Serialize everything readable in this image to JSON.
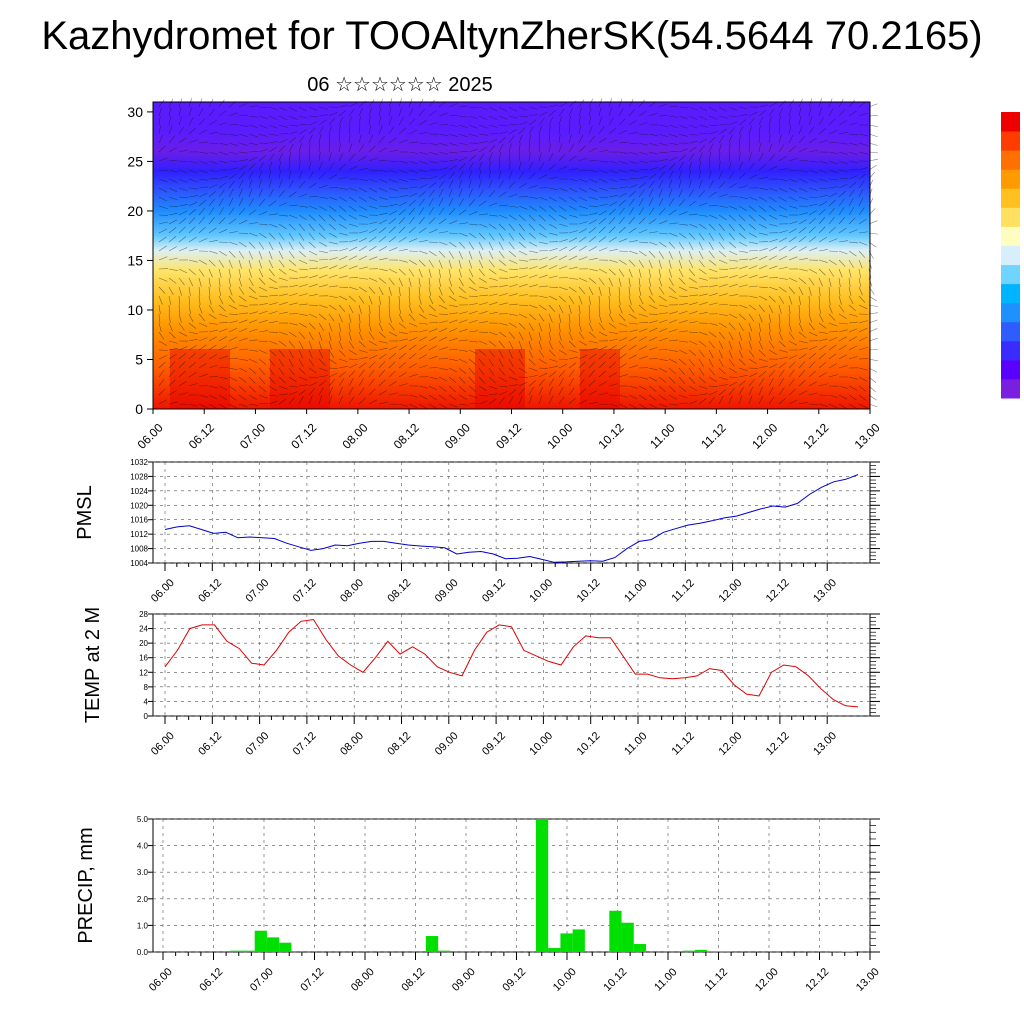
{
  "title": "Kazhydromet for TOOAltynZherSK(54.5644 70.2165)",
  "subtitle": "06 ☆☆☆☆☆☆ 2025",
  "colorbar": {
    "colors": [
      "#7a1fe0",
      "#5a00ff",
      "#3a2bff",
      "#2f5cff",
      "#1e90ff",
      "#00b5ff",
      "#6fd4ff",
      "#d7eefc",
      "#fffdc0",
      "#ffe060",
      "#ffc020",
      "#ff9a00",
      "#ff7000",
      "#ff3c00",
      "#ee0000"
    ]
  },
  "chart_data": [
    {
      "type": "heatmap",
      "name": "cross-section",
      "x_ticks": [
        "06.00",
        "06.12",
        "07.00",
        "07.12",
        "08.00",
        "08.12",
        "09.00",
        "09.12",
        "10.00",
        "10.12",
        "11.00",
        "11.12",
        "12.00",
        "12.12",
        "13.00"
      ],
      "y_ticks": [
        "0",
        "5",
        "10",
        "15",
        "20",
        "25",
        "30"
      ],
      "ylim": [
        0,
        31
      ],
      "bands": [
        {
          "y": 0,
          "color": "#ee1500"
        },
        {
          "y": 4,
          "color": "#ff5a00"
        },
        {
          "y": 8,
          "color": "#ff9200"
        },
        {
          "y": 11,
          "color": "#ffbe1e"
        },
        {
          "y": 14,
          "color": "#ffe46a"
        },
        {
          "y": 16,
          "color": "#dcf0f4"
        },
        {
          "y": 17.5,
          "color": "#62c8ff"
        },
        {
          "y": 20,
          "color": "#1f8cff"
        },
        {
          "y": 22,
          "color": "#2c55ff"
        },
        {
          "y": 24,
          "color": "#3020ff"
        },
        {
          "y": 26,
          "color": "#6a1ee8"
        },
        {
          "y": 28,
          "color": "#5a1cff"
        },
        {
          "y": 31,
          "color": "#5a1cff"
        }
      ]
    },
    {
      "type": "line",
      "ylabel": "PMSL",
      "x_ticks": [
        "06.00",
        "06.12",
        "07.00",
        "07.12",
        "08.00",
        "08.12",
        "09.00",
        "09.12",
        "10.00",
        "10.12",
        "11.00",
        "11.12",
        "12.00",
        "12.12",
        "13.00"
      ],
      "y_ticks": [
        "1004",
        "1008",
        "1012",
        "1016",
        "1020",
        "1024",
        "1028",
        "1032"
      ],
      "ylim": [
        1004,
        1032
      ],
      "color": "#0000cc",
      "values": [
        1013.3,
        1014,
        1014.3,
        1013.3,
        1012.2,
        1012.5,
        1011,
        1011.2,
        1011,
        1010.8,
        1009.5,
        1008.5,
        1007.5,
        1008,
        1009,
        1008.8,
        1009.5,
        1010,
        1010,
        1009.5,
        1009,
        1008.7,
        1008.5,
        1008.2,
        1006.5,
        1007,
        1007.2,
        1006.5,
        1005.2,
        1005.3,
        1005.8,
        1005,
        1004.2,
        1004.3,
        1004.5,
        1004.6,
        1004.5,
        1005.5,
        1008,
        1010,
        1010.5,
        1012.5,
        1013.5,
        1014.5,
        1015,
        1015.7,
        1016.5,
        1017,
        1018,
        1019,
        1019.8,
        1019.5,
        1020.5,
        1023,
        1025,
        1026.5,
        1027.2,
        1028.5
      ]
    },
    {
      "type": "line",
      "ylabel": "TEMP at 2 M",
      "x_ticks": [
        "06.00",
        "06.12",
        "07.00",
        "07.12",
        "08.00",
        "08.12",
        "09.00",
        "09.12",
        "10.00",
        "10.12",
        "11.00",
        "11.12",
        "12.00",
        "12.12",
        "13.00"
      ],
      "y_ticks": [
        "0",
        "4",
        "8",
        "12",
        "16",
        "20",
        "24",
        "28"
      ],
      "ylim": [
        0,
        28
      ],
      "color": "#dd0000",
      "values": [
        13.5,
        18,
        24,
        25,
        25,
        20.5,
        18.5,
        14.5,
        14,
        18,
        23,
        26,
        26.5,
        21,
        16.5,
        14,
        12,
        16,
        20.5,
        17,
        19,
        17,
        13.5,
        12,
        11,
        18,
        23,
        25,
        24.5,
        18,
        16.5,
        15,
        14,
        19,
        22,
        21.5,
        21.5,
        16.5,
        11.5,
        11.5,
        10.5,
        10.2,
        10.5,
        11,
        13,
        12.5,
        8.5,
        6,
        5.5,
        12,
        14,
        13.5,
        11,
        7.5,
        4.5,
        2.8,
        2.5
      ]
    },
    {
      "type": "bar",
      "ylabel": "PRECIP, mm",
      "x_ticks": [
        "06.00",
        "06.12",
        "07.00",
        "07.12",
        "08.00",
        "08.12",
        "09.00",
        "09.12",
        "10.00",
        "10.12",
        "11.00",
        "11.12",
        "12.00",
        "12.12",
        "13.00"
      ],
      "y_ticks": [
        "0.0",
        "1.0",
        "2.0",
        "3.0",
        "4.0",
        "5.0"
      ],
      "ylim": [
        0,
        5
      ],
      "color": "#00e000",
      "values": [
        0,
        0,
        0,
        0,
        0,
        0,
        0.05,
        0.05,
        0.8,
        0.55,
        0.35,
        0,
        0,
        0,
        0,
        0,
        0,
        0,
        0,
        0,
        0,
        0,
        0.6,
        0.05,
        0,
        0,
        0,
        0,
        0,
        0,
        0,
        5.0,
        0.15,
        0.7,
        0.85,
        0,
        0,
        1.55,
        1.1,
        0.3,
        0,
        0,
        0,
        0.05,
        0.08,
        0.03,
        0.03,
        0,
        0,
        0,
        0,
        0,
        0,
        0,
        0,
        0.03,
        0.02,
        0
      ]
    }
  ]
}
